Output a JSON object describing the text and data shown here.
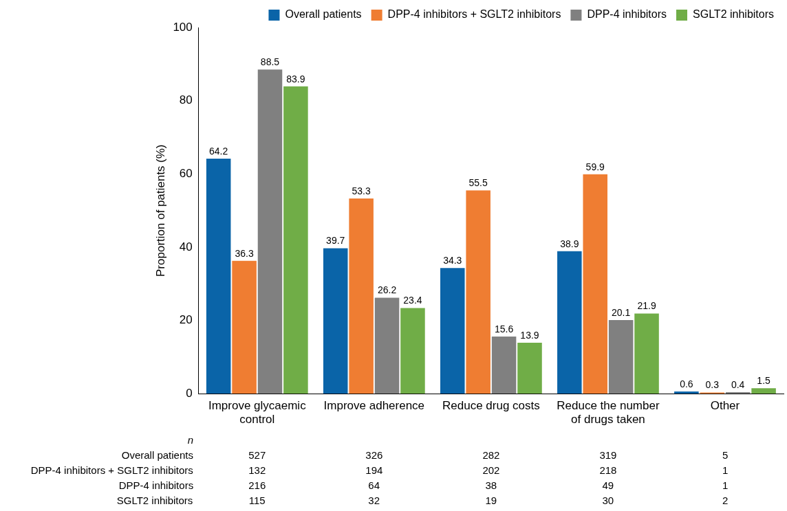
{
  "chart_data": {
    "type": "bar",
    "ylabel": "Proportion of patients (%)",
    "categories": [
      "Improve glycaemic control",
      "Improve adherence",
      "Reduce drug costs",
      "Reduce the number of drugs taken",
      "Other"
    ],
    "series": [
      {
        "name": "Overall patients",
        "color": "#0a64a8",
        "values": [
          64.2,
          39.7,
          34.3,
          38.9,
          0.6
        ]
      },
      {
        "name": "DPP-4 inhibitors + SGLT2 inhibitors",
        "color": "#ef7d32",
        "values": [
          36.3,
          53.3,
          55.5,
          59.9,
          0.3
        ]
      },
      {
        "name": "DPP-4 inhibitors",
        "color": "#808080",
        "values": [
          88.5,
          26.2,
          15.6,
          20.1,
          0.4
        ]
      },
      {
        "name": "SGLT2 inhibitors",
        "color": "#70ad47",
        "values": [
          83.9,
          23.4,
          13.9,
          21.9,
          1.5
        ]
      }
    ],
    "ylim": [
      0,
      100
    ],
    "yticks": [
      0,
      20,
      40,
      60,
      80,
      100
    ],
    "grid": false,
    "legend": "top",
    "data_labels": true,
    "annotations": [
      "n",
      "527",
      "326",
      "282",
      "319",
      "5",
      "132",
      "194",
      "202",
      "218",
      "1",
      "216",
      "64",
      "38",
      "49",
      "1",
      "115",
      "32",
      "19",
      "30",
      "2"
    ]
  }
}
